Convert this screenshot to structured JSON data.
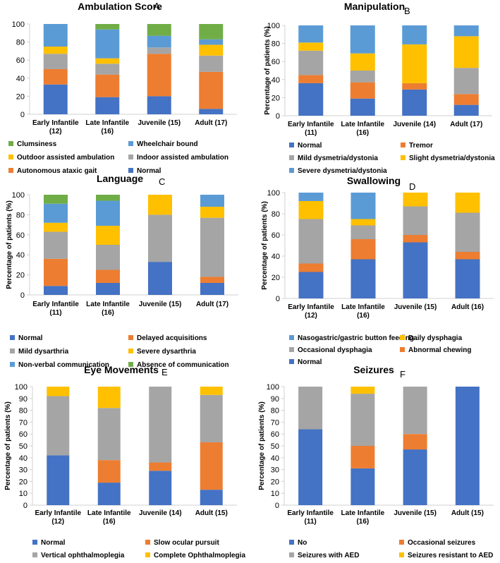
{
  "colors": {
    "blue_dark": "#4472C4",
    "orange": "#ED7D31",
    "gray": "#A5A5A5",
    "yellow": "#FFC000",
    "blue_light": "#5B9BD5",
    "green": "#70AD47",
    "axis": "#d0d0d0",
    "text": "#000000"
  },
  "chart_data": [
    {
      "type": "bar",
      "stacked": true,
      "panel_letter": "A",
      "title": "Ambulation Score",
      "ylabel": "",
      "ylim": [
        0,
        100
      ],
      "yticks": [
        0,
        20,
        40,
        60,
        80,
        100
      ],
      "categories": [
        "Early Infantile|(12)",
        "Late Infantile|(16)",
        "Juvenile (15)",
        "Adult (17)"
      ],
      "series": [
        {
          "name": "Normal",
          "color": "#4472C4",
          "values": [
            33,
            19,
            20,
            6
          ]
        },
        {
          "name": "Autonomous ataxic gait",
          "color": "#ED7D31",
          "values": [
            17,
            25,
            47,
            41
          ]
        },
        {
          "name": "Indoor assisted ambulation",
          "color": "#A5A5A5",
          "values": [
            17,
            12,
            7,
            18
          ]
        },
        {
          "name": "Outdoor assisted ambulation",
          "color": "#FFC000",
          "values": [
            8,
            6,
            0,
            12
          ]
        },
        {
          "name": "Wheelchair bound",
          "color": "#5B9BD5",
          "values": [
            25,
            32,
            13,
            6
          ]
        },
        {
          "name": "Clumsiness",
          "color": "#70AD47",
          "values": [
            0,
            6,
            13,
            17
          ]
        }
      ],
      "legend_order": [
        "Clumsiness",
        "Wheelchair bound",
        "Outdoor assisted ambulation",
        "Indoor assisted ambulation",
        "Autonomous ataxic gait",
        "Normal"
      ],
      "legend_columns": 2
    },
    {
      "type": "bar",
      "stacked": true,
      "panel_letter": "B",
      "title": "Manipulation",
      "ylabel": "Percentage of patients (%)",
      "ylim": [
        0,
        100
      ],
      "yticks": [
        0,
        20,
        40,
        60,
        80,
        100
      ],
      "categories": [
        "Early Infantile|(11)",
        "Late Infantile|(16)",
        "Juvenile (14)",
        "Adult (17)"
      ],
      "series": [
        {
          "name": "Normal",
          "color": "#4472C4",
          "values": [
            36,
            19,
            29,
            12
          ]
        },
        {
          "name": "Tremor",
          "color": "#ED7D31",
          "values": [
            9,
            18,
            7,
            12
          ]
        },
        {
          "name": "Mild dysmetria/dystonia",
          "color": "#A5A5A5",
          "values": [
            27,
            13,
            0,
            29
          ]
        },
        {
          "name": "Slight dysmetria/dystonia",
          "color": "#FFC000",
          "values": [
            9,
            19,
            43,
            35
          ]
        },
        {
          "name": "Severe dysmetria/dystonia",
          "color": "#5B9BD5",
          "values": [
            19,
            31,
            21,
            12
          ]
        }
      ],
      "legend_order": [
        "Normal",
        "Tremor",
        "Mild dysmetria/dystonia",
        "Slight dysmetria/dystonia",
        "Severe dysmetria/dystonia"
      ],
      "legend_columns": 2
    },
    {
      "type": "bar",
      "stacked": true,
      "panel_letter": "C",
      "title": "Language",
      "ylabel": "Percentage of patients (%)",
      "ylim": [
        0,
        100
      ],
      "yticks": [
        0,
        20,
        40,
        60,
        80,
        100
      ],
      "categories": [
        "Early Infantile|(11)",
        "Late Infantile|(16)",
        "Juvenile (15)",
        "Adult (17)"
      ],
      "series": [
        {
          "name": "Normal",
          "color": "#4472C4",
          "values": [
            9,
            12,
            33,
            12
          ]
        },
        {
          "name": "Delayed acquisitions",
          "color": "#ED7D31",
          "values": [
            27,
            13,
            0,
            6
          ]
        },
        {
          "name": "Mild dysarthria",
          "color": "#A5A5A5",
          "values": [
            27,
            25,
            47,
            59
          ]
        },
        {
          "name": "Severe dysarthria",
          "color": "#FFC000",
          "values": [
            9,
            19,
            20,
            11
          ]
        },
        {
          "name": "Non-verbal communication",
          "color": "#5B9BD5",
          "values": [
            19,
            25,
            0,
            12
          ]
        },
        {
          "name": "Absence of communication",
          "color": "#70AD47",
          "values": [
            9,
            6,
            0,
            0
          ]
        }
      ],
      "legend_order": [
        "Normal",
        "Delayed acquisitions",
        "Mild dysarthria",
        "Severe dysarthria",
        "Non-verbal communication",
        "Absence of communication"
      ],
      "legend_columns": 2
    },
    {
      "type": "bar",
      "stacked": true,
      "panel_letter": "D",
      "title": "Swallowing",
      "ylabel": "Percentage of patients (%)",
      "ylim": [
        0,
        100
      ],
      "yticks": [
        0,
        20,
        40,
        60,
        80,
        100
      ],
      "categories": [
        "Early Infantile|(12)",
        "Late Infantile|(16)",
        "Juvenile (15)",
        "Adult (16)"
      ],
      "series": [
        {
          "name": "Normal",
          "color": "#4472C4",
          "values": [
            25,
            37,
            53,
            37
          ]
        },
        {
          "name": "Abnormal chewing",
          "color": "#ED7D31",
          "values": [
            8,
            19,
            7,
            7
          ]
        },
        {
          "name": "Occasional dysphagia",
          "color": "#A5A5A5",
          "values": [
            42,
            13,
            27,
            37
          ]
        },
        {
          "name": "Daily dysphagia",
          "color": "#FFC000",
          "values": [
            17,
            6,
            13,
            19
          ]
        },
        {
          "name": "Nasogastric/gastric button feeding",
          "color": "#5B9BD5",
          "values": [
            8,
            25,
            0,
            0
          ]
        }
      ],
      "legend_order": [
        "Nasogastric/gastric button feeding",
        "Daily dysphagia",
        "Occasional dysphagia",
        "Abnormal chewing",
        "Normal"
      ],
      "legend_columns": 2
    },
    {
      "type": "bar",
      "stacked": true,
      "panel_letter": "E",
      "title": "Eye Movements",
      "ylabel": "Percentage of patients (%)",
      "ylim": [
        0,
        100
      ],
      "yticks": [
        0,
        10,
        20,
        30,
        40,
        50,
        60,
        70,
        80,
        90,
        100
      ],
      "categories": [
        "Early Infantile|(12)",
        "Late Infantile|(16)",
        "Juvenile (14)",
        "Adult (15)"
      ],
      "series": [
        {
          "name": "Normal",
          "color": "#4472C4",
          "values": [
            42,
            19,
            29,
            13
          ]
        },
        {
          "name": "Slow ocular pursuit",
          "color": "#ED7D31",
          "values": [
            0,
            19,
            7,
            40
          ]
        },
        {
          "name": "Vertical ophthalmoplegia",
          "color": "#A5A5A5",
          "values": [
            50,
            44,
            64,
            40
          ]
        },
        {
          "name": "Complete Ophthalmoplegia",
          "color": "#FFC000",
          "values": [
            8,
            18,
            0,
            7
          ]
        }
      ],
      "legend_order": [
        "Normal",
        "Slow ocular pursuit",
        "Vertical ophthalmoplegia",
        "Complete Ophthalmoplegia"
      ],
      "legend_columns": 2
    },
    {
      "type": "bar",
      "stacked": true,
      "panel_letter": "F",
      "title": "Seizures",
      "ylabel": "Percentage of patients (%)",
      "ylim": [
        0,
        100
      ],
      "yticks": [
        0,
        10,
        20,
        30,
        40,
        50,
        60,
        70,
        80,
        90,
        100
      ],
      "categories": [
        "Early Infantile|(11)",
        "Late Infantile|(16)",
        "Juvenile (15)",
        "Adult (15)"
      ],
      "series": [
        {
          "name": "No",
          "color": "#4472C4",
          "values": [
            64,
            31,
            47,
            100
          ]
        },
        {
          "name": "Occasional seizures",
          "color": "#ED7D31",
          "values": [
            0,
            19,
            13,
            0
          ]
        },
        {
          "name": "Seizures with AED",
          "color": "#A5A5A5",
          "values": [
            36,
            44,
            40,
            0
          ]
        },
        {
          "name": "Seizures resistant to AED",
          "color": "#FFC000",
          "values": [
            0,
            6,
            0,
            0
          ]
        }
      ],
      "legend_order": [
        "No",
        "Occasional seizures",
        "Seizures with AED",
        "Seizures resistant to AED"
      ],
      "legend_columns": 2
    }
  ]
}
